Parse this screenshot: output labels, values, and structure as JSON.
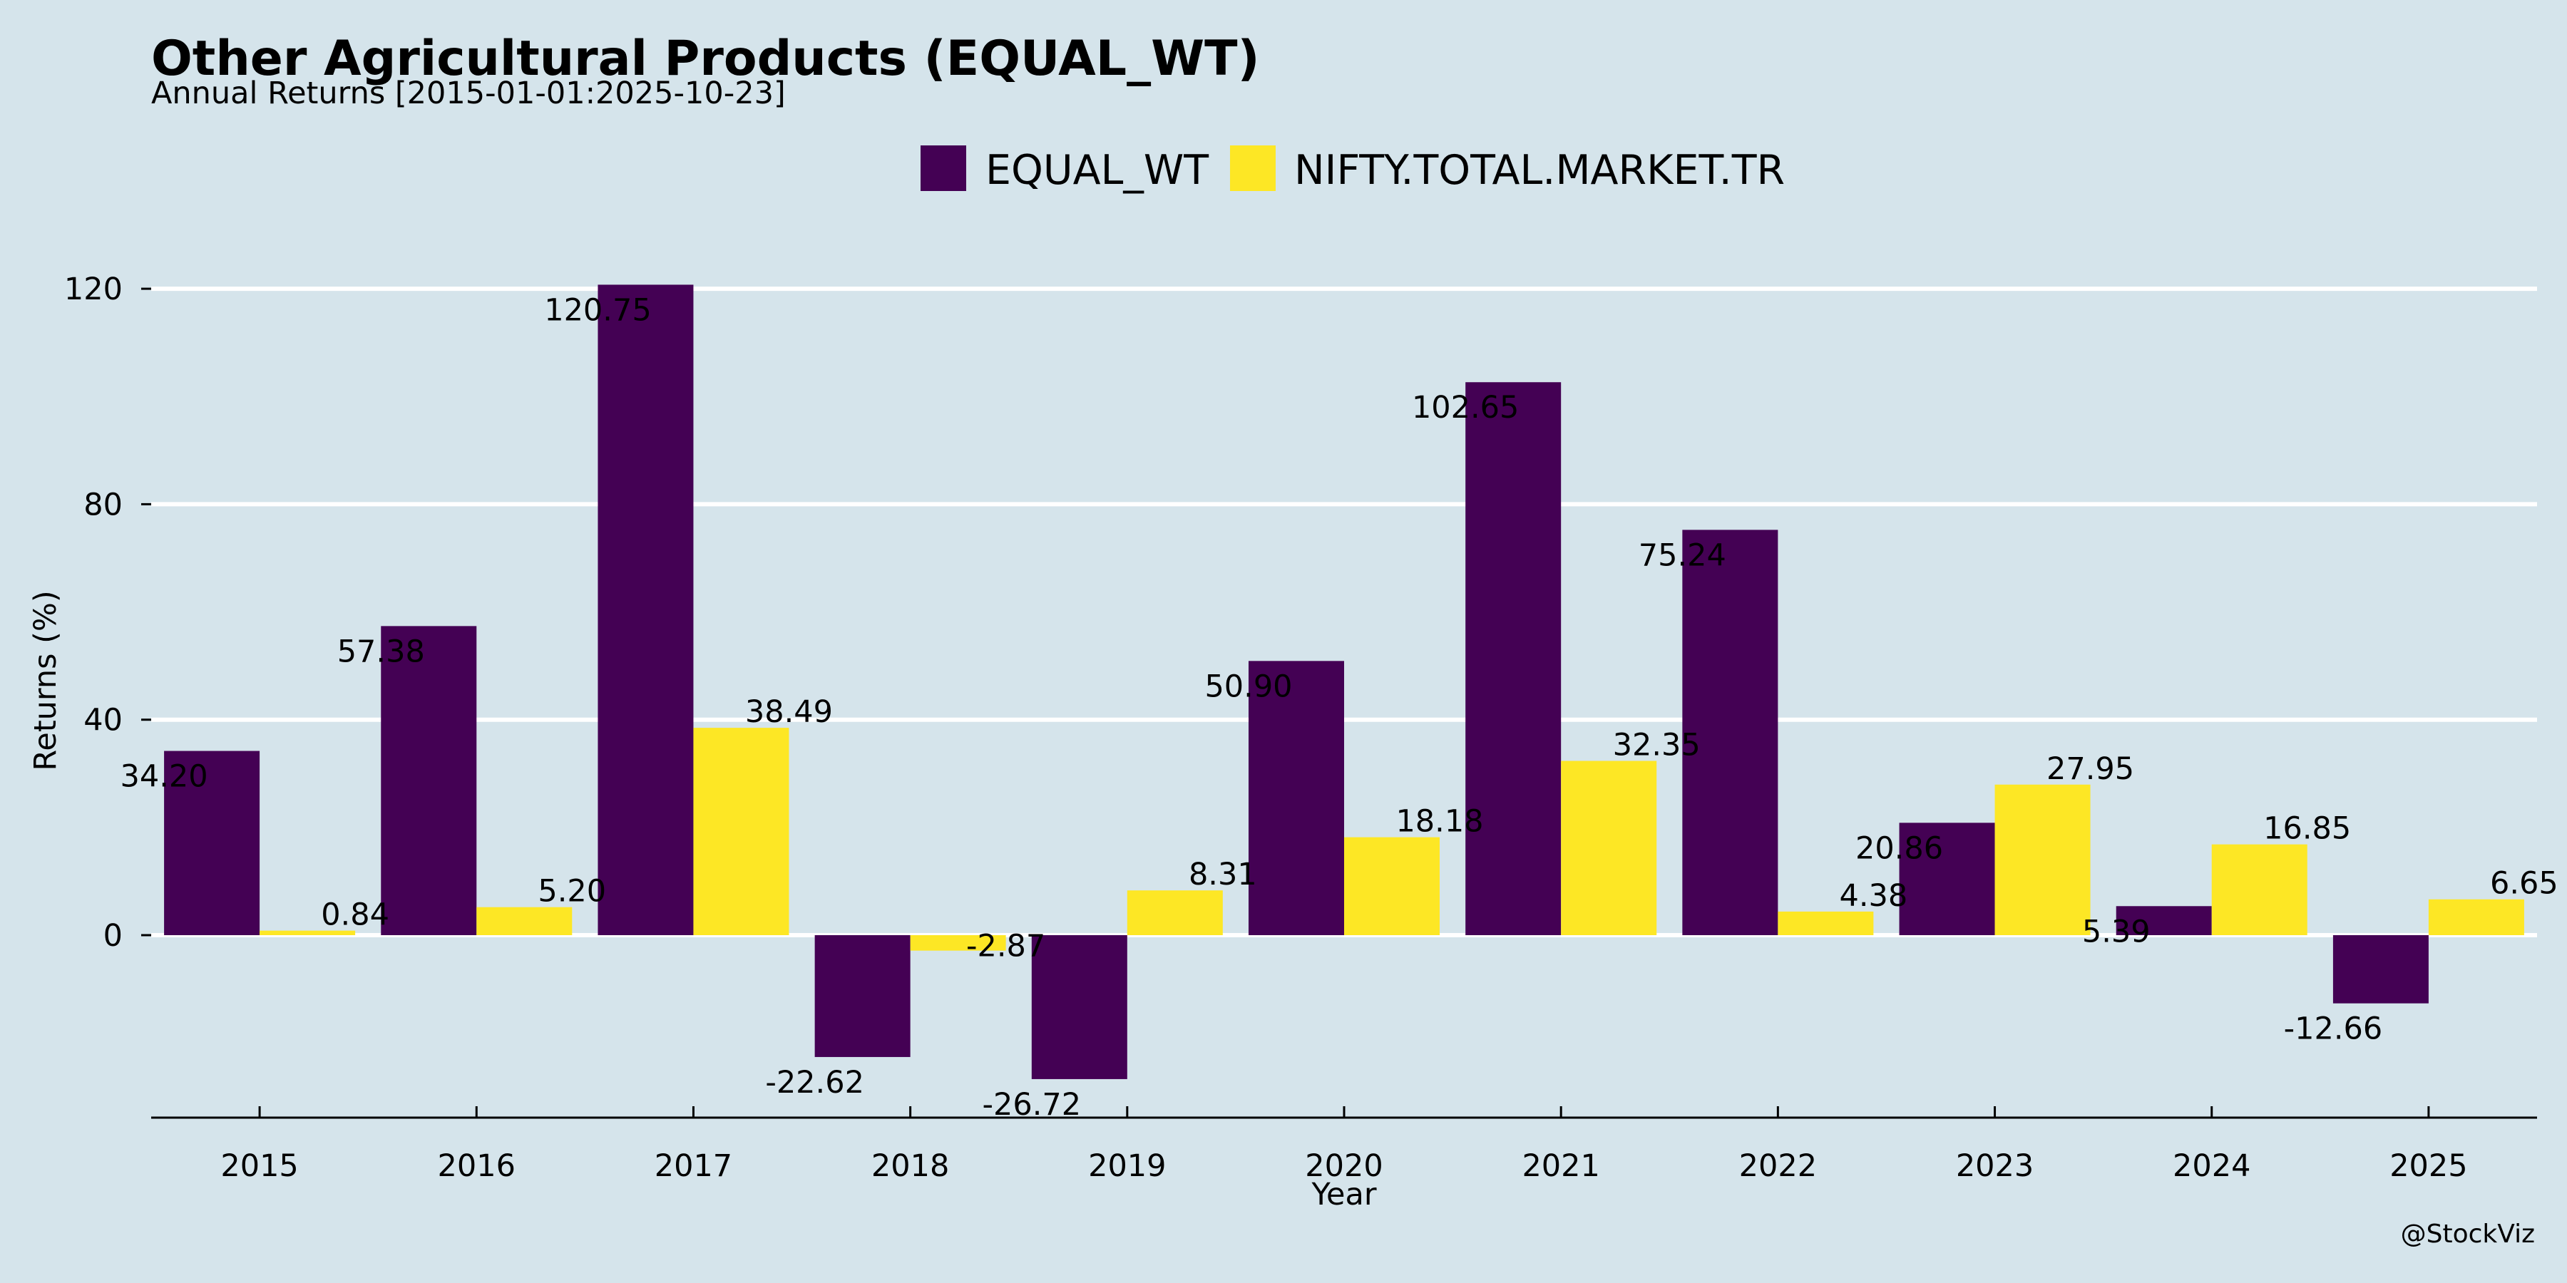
{
  "header": {
    "title": "Other Agricultural Products (EQUAL_WT)",
    "subtitle": "Annual Returns [2015-01-01:2025-10-23]"
  },
  "credit": "@StockViz",
  "chart_data": {
    "type": "bar",
    "title": "Other Agricultural Products (EQUAL_WT)",
    "subtitle": "Annual Returns [2015-01-01:2025-10-23]",
    "xlabel": "Year",
    "ylabel": "Returns (%)",
    "categories": [
      "2015",
      "2016",
      "2017",
      "2018",
      "2019",
      "2020",
      "2021",
      "2022",
      "2023",
      "2024",
      "2025"
    ],
    "series": [
      {
        "name": "EQUAL_WT",
        "color": "#440154",
        "values": [
          34.2,
          57.38,
          120.75,
          -22.62,
          -26.72,
          50.9,
          102.65,
          75.24,
          20.86,
          5.39,
          -12.66
        ],
        "labels": [
          "34.20",
          "57.38",
          "120.75",
          "-22.62",
          "-26.72",
          "50.90",
          "102.65",
          "75.24",
          "20.86",
          "5.39",
          "-12.66"
        ]
      },
      {
        "name": "NIFTY.TOTAL.MARKET.TR",
        "color": "#fde725",
        "values": [
          0.84,
          5.2,
          38.49,
          -2.87,
          8.31,
          18.18,
          32.35,
          4.38,
          27.95,
          16.85,
          6.65
        ],
        "labels": [
          "0.84",
          "5.20",
          "38.49",
          "-2.87",
          "8.31",
          "18.18",
          "32.35",
          "4.38",
          "27.95",
          "16.85",
          "6.65"
        ]
      }
    ],
    "yticks": [
      0,
      40,
      80,
      120
    ],
    "ytick_labels": [
      "0",
      "40",
      "80",
      "120"
    ],
    "ylim": [
      -34,
      124
    ],
    "grid": true,
    "legend_position": "top-center"
  }
}
